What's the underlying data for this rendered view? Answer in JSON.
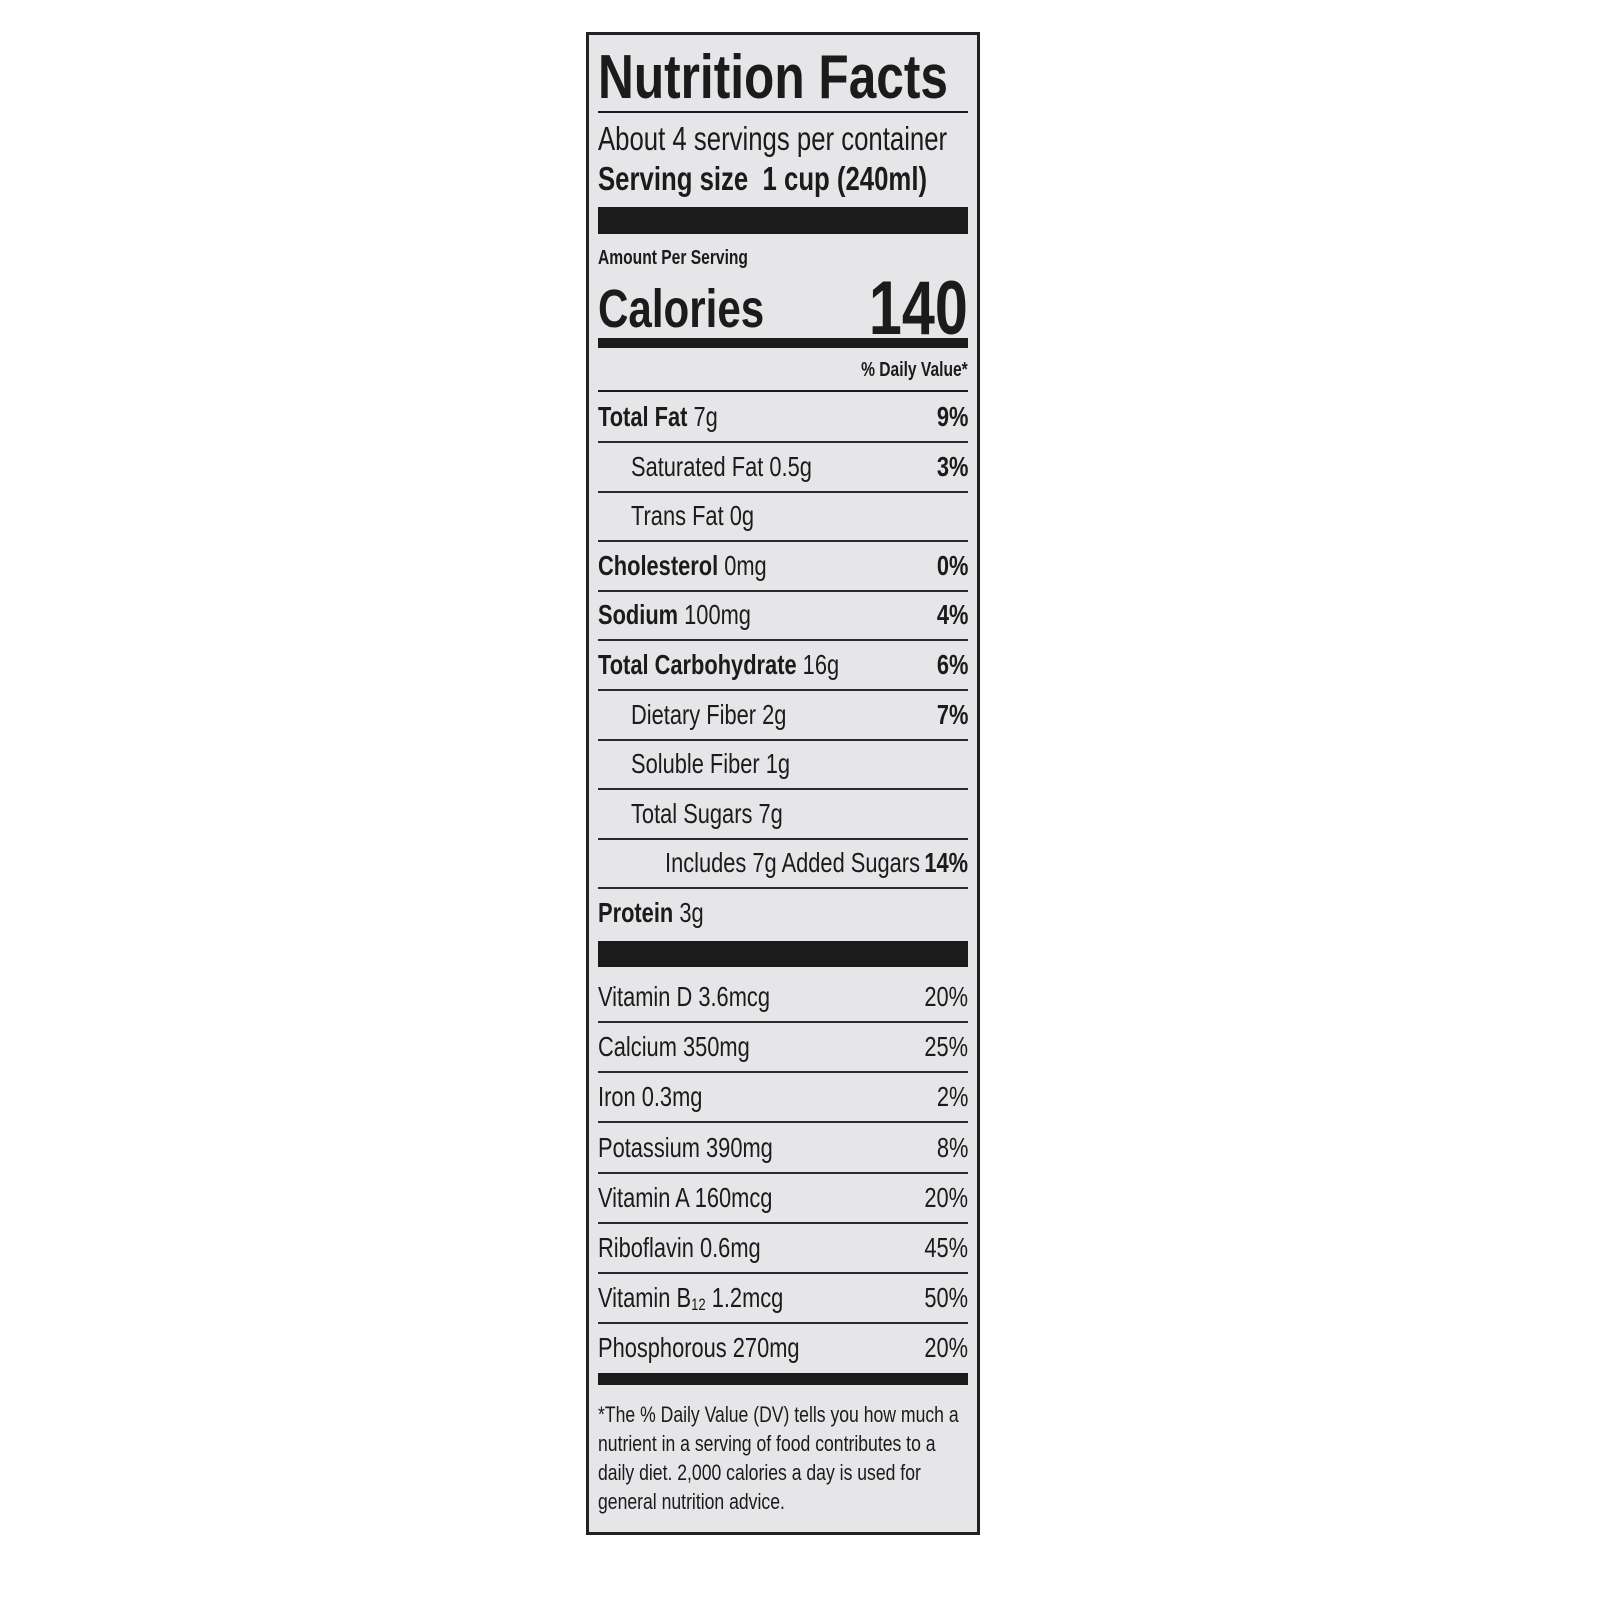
{
  "title": "Nutrition Facts",
  "servings_per_container": "About 4 servings per container",
  "serving_size_label": "Serving size",
  "serving_size_value": "1 cup (240ml)",
  "amount_per_serving": "Amount Per Serving",
  "calories_label": "Calories",
  "calories_value": "140",
  "daily_value_header": "% Daily Value*",
  "nutrients": [
    {
      "name": "Total Fat",
      "amount": "7g",
      "dv": "9%",
      "bold": true,
      "indent": 0
    },
    {
      "name": "Saturated Fat",
      "amount": "0.5g",
      "dv": "3%",
      "bold": false,
      "indent": 1
    },
    {
      "name": "Trans Fat",
      "amount": "0g",
      "dv": "",
      "bold": false,
      "indent": 1
    },
    {
      "name": "Cholesterol",
      "amount": "0mg",
      "dv": "0%",
      "bold": true,
      "indent": 0
    },
    {
      "name": "Sodium",
      "amount": "100mg",
      "dv": "4%",
      "bold": true,
      "indent": 0
    },
    {
      "name": "Total Carbohydrate",
      "amount": "16g",
      "dv": "6%",
      "bold": true,
      "indent": 0
    },
    {
      "name": "Dietary Fiber",
      "amount": "2g",
      "dv": "7%",
      "bold": false,
      "indent": 1
    },
    {
      "name": "Soluble Fiber",
      "amount": "1g",
      "dv": "",
      "bold": false,
      "indent": 1
    },
    {
      "name": "Total Sugars",
      "amount": "7g",
      "dv": "",
      "bold": false,
      "indent": 1
    },
    {
      "name": "Includes 7g Added Sugars",
      "amount": "",
      "dv": "14%",
      "bold": false,
      "indent": 2
    },
    {
      "name": "Protein",
      "amount": "3g",
      "dv": "",
      "bold": true,
      "indent": 0
    }
  ],
  "vitamins": [
    {
      "name": "Vitamin D",
      "amount": "3.6mcg",
      "dv": "20%"
    },
    {
      "name": "Calcium",
      "amount": "350mg",
      "dv": "25%"
    },
    {
      "name": "Iron",
      "amount": "0.3mg",
      "dv": "2%"
    },
    {
      "name": "Potassium",
      "amount": "390mg",
      "dv": "8%"
    },
    {
      "name": "Vitamin A",
      "amount": "160mcg",
      "dv": "20%"
    },
    {
      "name": "Riboflavin",
      "amount": "0.6mg",
      "dv": "45%"
    },
    {
      "name": "Vitamin B",
      "subscript": "12",
      "amount": "1.2mcg",
      "dv": "50%"
    },
    {
      "name": "Phosphorous",
      "amount": "270mg",
      "dv": "20%"
    }
  ],
  "footnote": "*The % Daily Value (DV) tells you how much a nutrient in a serving of food contributes to a daily diet. 2,000 calories a day is used for general nutrition advice."
}
